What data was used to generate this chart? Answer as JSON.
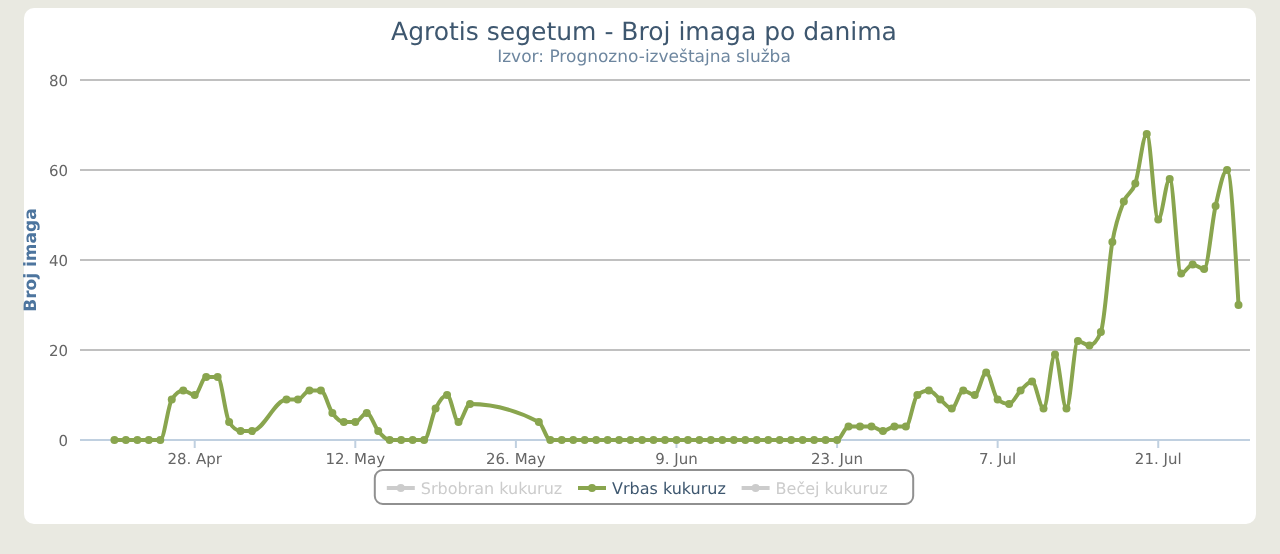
{
  "chart_data": {
    "type": "line",
    "title": "Agrotis segetum - Broj imaga po danima",
    "subtitle": "Izvor: Prognozno-izveštajna služba",
    "ylabel": "Broj imaga",
    "xlim": [
      "--04-18",
      "--07-29"
    ],
    "ylim": [
      0,
      80
    ],
    "yticks": [
      0,
      20,
      40,
      60,
      80
    ],
    "xticks": [
      {
        "value": "--04-28",
        "label": "28. Apr"
      },
      {
        "value": "--05-12",
        "label": "12. May"
      },
      {
        "value": "--05-26",
        "label": "26. May"
      },
      {
        "value": "--06-09",
        "label": "9. Jun"
      },
      {
        "value": "--06-23",
        "label": "23. Jun"
      },
      {
        "value": "--07-07",
        "label": "7. Jul"
      },
      {
        "value": "--07-21",
        "label": "21. Jul"
      }
    ],
    "grid": "y",
    "legend": "bottom",
    "marker": "circle",
    "line_style": "solid",
    "series": [
      {
        "name": "Srbobran kukuruz",
        "color": "#cccccc"
      },
      {
        "name": "Vrbas kukuruz",
        "color": "#89a54e",
        "x": [
          "--04-21",
          "--04-22",
          "--04-23",
          "--04-24",
          "--04-25",
          "--04-26",
          "--04-27",
          "--04-28",
          "--04-29",
          "--04-30",
          "--05-01",
          "--05-02",
          "--05-03",
          "--05-06",
          "--05-07",
          "--05-08",
          "--05-09",
          "--05-10",
          "--05-11",
          "--05-12",
          "--05-13",
          "--05-14",
          "--05-15",
          "--05-16",
          "--05-17",
          "--05-18",
          "--05-19",
          "--05-20",
          "--05-21",
          "--05-22",
          "--05-28",
          "--05-29",
          "--05-30",
          "--05-31",
          "--06-01",
          "--06-02",
          "--06-03",
          "--06-04",
          "--06-05",
          "--06-06",
          "--06-07",
          "--06-08",
          "--06-09",
          "--06-10",
          "--06-11",
          "--06-12",
          "--06-13",
          "--06-14",
          "--06-15",
          "--06-16",
          "--06-17",
          "--06-18",
          "--06-19",
          "--06-20",
          "--06-21",
          "--06-22",
          "--06-23",
          "--06-24",
          "--06-25",
          "--06-26",
          "--06-27",
          "--06-28",
          "--06-29",
          "--06-30",
          "--07-01",
          "--07-02",
          "--07-03",
          "--07-04",
          "--07-05",
          "--07-06",
          "--07-07",
          "--07-08",
          "--07-09",
          "--07-10",
          "--07-11",
          "--07-12",
          "--07-13",
          "--07-14",
          "--07-15",
          "--07-16",
          "--07-17",
          "--07-18",
          "--07-19",
          "--07-20",
          "--07-21",
          "--07-22",
          "--07-23",
          "--07-24",
          "--07-25",
          "--07-26",
          "--07-27",
          "--07-28"
        ],
        "values": [
          0,
          0,
          0,
          0,
          0,
          9,
          11,
          10,
          14,
          14,
          4,
          2,
          2,
          9,
          9,
          11,
          11,
          6,
          4,
          4,
          6,
          2,
          0,
          0,
          0,
          0,
          7,
          10,
          4,
          8,
          4,
          0,
          0,
          0,
          0,
          0,
          0,
          0,
          0,
          0,
          0,
          0,
          0,
          0,
          0,
          0,
          0,
          0,
          0,
          0,
          0,
          0,
          0,
          0,
          0,
          0,
          0,
          3,
          3,
          3,
          2,
          3,
          3,
          10,
          11,
          9,
          7,
          11,
          10,
          15,
          9,
          8,
          11,
          13,
          7,
          19,
          7,
          22,
          21,
          24,
          44,
          53,
          57,
          68,
          49,
          58,
          37,
          39,
          38,
          52,
          60,
          30
        ]
      },
      {
        "name": "Bečej kukuruz",
        "color": "#cccccc"
      }
    ]
  }
}
